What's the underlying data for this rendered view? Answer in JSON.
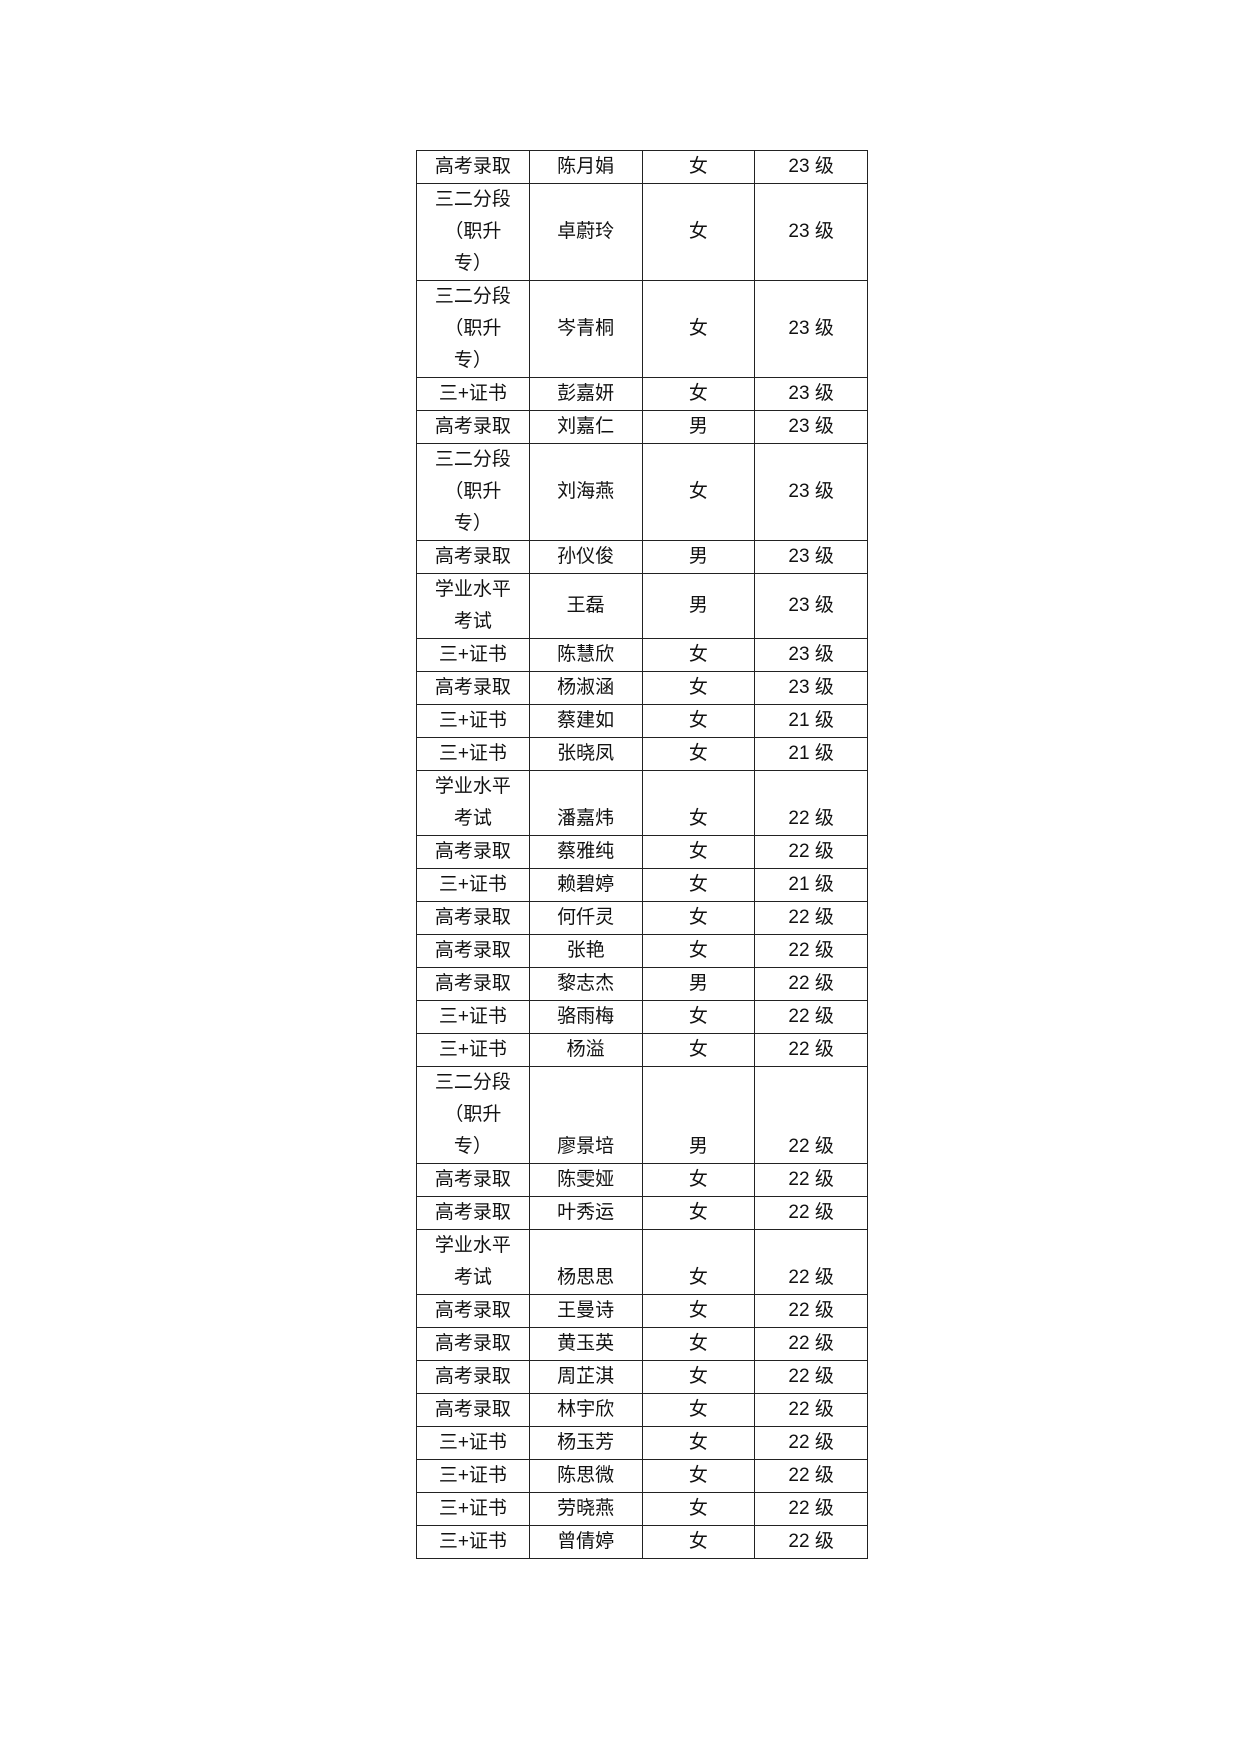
{
  "table": {
    "rows": [
      [
        "高考录取",
        "陈月娟",
        "女",
        "23 级"
      ],
      [
        "三二分段（职升专）",
        "卓蔚玲",
        "女",
        "23 级"
      ],
      [
        "三二分段（职升专）",
        "岑青桐",
        "女",
        "23 级"
      ],
      [
        "三+证书",
        "彭嘉妍",
        "女",
        "23 级"
      ],
      [
        "高考录取",
        "刘嘉仁",
        "男",
        "23 级"
      ],
      [
        "三二分段（职升专）",
        "刘海燕",
        "女",
        "23 级"
      ],
      [
        "高考录取",
        "孙仪俊",
        "男",
        "23 级"
      ],
      [
        "学业水平考试",
        "王磊",
        "男",
        "23 级"
      ],
      [
        "三+证书",
        "陈慧欣",
        "女",
        "23 级"
      ],
      [
        "高考录取",
        "杨淑涵",
        "女",
        "23 级"
      ],
      [
        "三+证书",
        "蔡建如",
        "女",
        "21 级"
      ],
      [
        "三+证书",
        "张晓凤",
        "女",
        "21 级"
      ],
      [
        "学业水平考试",
        "潘嘉炜",
        "女",
        "22 级"
      ],
      [
        "高考录取",
        "蔡雅纯",
        "女",
        "22 级"
      ],
      [
        "三+证书",
        "赖碧婷",
        "女",
        "21 级"
      ],
      [
        "高考录取",
        "何仟灵",
        "女",
        "22 级"
      ],
      [
        "高考录取",
        "张艳",
        "女",
        "22 级"
      ],
      [
        "高考录取",
        "黎志杰",
        "男",
        "22 级"
      ],
      [
        "三+证书",
        "骆雨梅",
        "女",
        "22 级"
      ],
      [
        "三+证书",
        "杨溢",
        "女",
        "22 级"
      ],
      [
        "三二分段（职升专）",
        "廖景培",
        "男",
        "22 级"
      ],
      [
        "高考录取",
        "陈雯娅",
        "女",
        "22 级"
      ],
      [
        "高考录取",
        "叶秀运",
        "女",
        "22 级"
      ],
      [
        "学业水平考试",
        "杨思思",
        "女",
        "22 级"
      ],
      [
        "高考录取",
        "王曼诗",
        "女",
        "22 级"
      ],
      [
        "高考录取",
        "黄玉英",
        "女",
        "22 级"
      ],
      [
        "高考录取",
        "周芷淇",
        "女",
        "22 级"
      ],
      [
        "高考录取",
        "林宇欣",
        "女",
        "22 级"
      ],
      [
        "三+证书",
        "杨玉芳",
        "女",
        "22 级"
      ],
      [
        "三+证书",
        "陈思微",
        "女",
        "22 级"
      ],
      [
        "三+证书",
        "劳晓燕",
        "女",
        "22 级"
      ],
      [
        "三+证书",
        "曾倩婷",
        "女",
        "22 级"
      ]
    ]
  }
}
